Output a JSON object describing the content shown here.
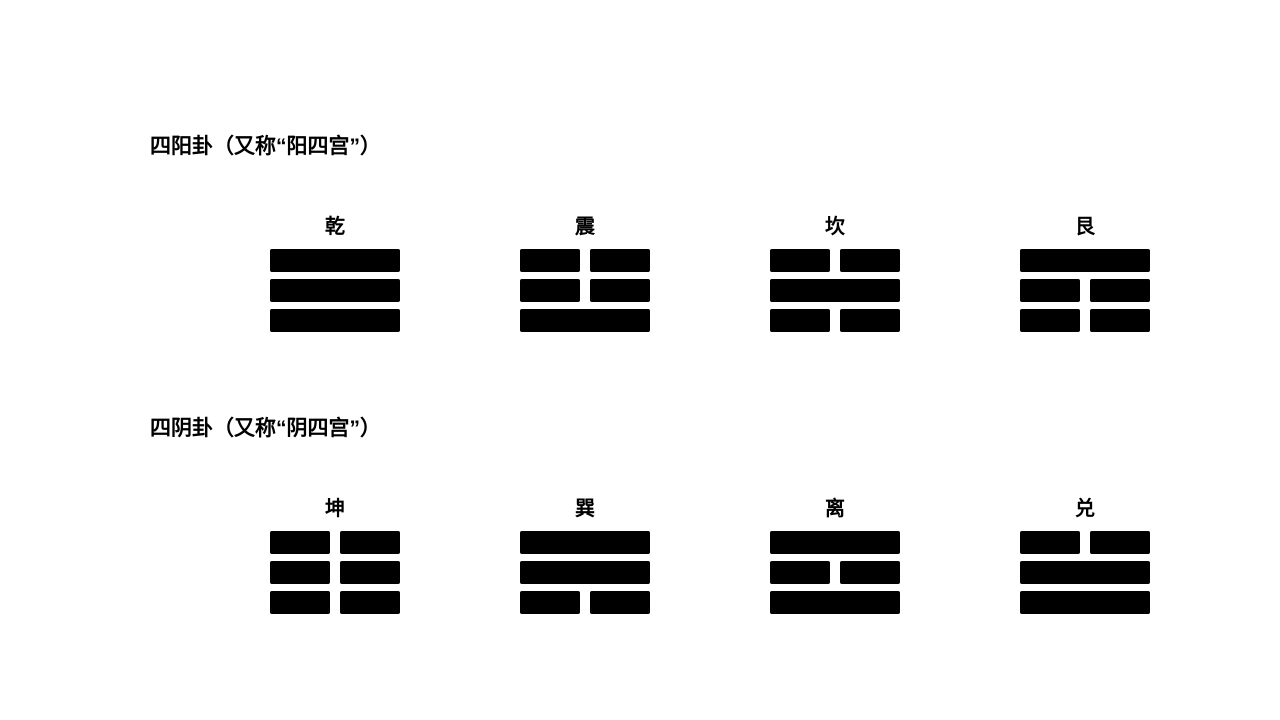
{
  "sections": [
    {
      "title": "四阳卦（又称“阳四宫”）",
      "trigrams": [
        {
          "name": "乾",
          "lines": [
            "yang",
            "yang",
            "yang"
          ]
        },
        {
          "name": "震",
          "lines": [
            "yin",
            "yin",
            "yang"
          ]
        },
        {
          "name": "坎",
          "lines": [
            "yin",
            "yang",
            "yin"
          ]
        },
        {
          "name": "艮",
          "lines": [
            "yang",
            "yin",
            "yin"
          ]
        }
      ]
    },
    {
      "title": "四阴卦（又称“阴四宫”）",
      "trigrams": [
        {
          "name": "坤",
          "lines": [
            "yin",
            "yin",
            "yin"
          ]
        },
        {
          "name": "巽",
          "lines": [
            "yang",
            "yang",
            "yin"
          ]
        },
        {
          "name": "离",
          "lines": [
            "yang",
            "yin",
            "yang"
          ]
        },
        {
          "name": "兑",
          "lines": [
            "yin",
            "yang",
            "yang"
          ]
        }
      ]
    }
  ],
  "style": {
    "background_color": "#ffffff",
    "bar_color": "#000000",
    "text_color": "#000000",
    "title_fontsize": 21,
    "name_fontsize": 20,
    "line_height": 23,
    "line_gap": 7,
    "yin_gap": 10,
    "trigram_width": 130,
    "border_radius": 2
  }
}
